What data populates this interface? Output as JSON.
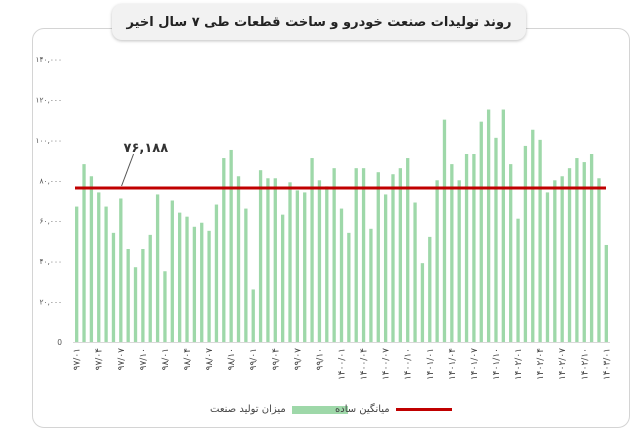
{
  "chart_data": {
    "type": "bar",
    "title": "روند تولیدات صنعت خودرو و ساخت قطعات طی ۷ سال اخیر",
    "ylim": [
      0,
      140000
    ],
    "y_ticks": [
      "0",
      "۲۰,۰۰۰",
      "۴۰,۰۰۰",
      "۶۰,۰۰۰",
      "۸۰,۰۰۰",
      "۱۰۰,۰۰۰",
      "۱۲۰,۰۰۰",
      "۱۴۰,۰۰۰"
    ],
    "x_tick_labels": [
      "۹۷/۰۱",
      "۹۷/۰۴",
      "۹۷/۰۷",
      "۹۷/۱۰",
      "۹۸/۰۱",
      "۹۸/۰۴",
      "۹۸/۰۷",
      "۹۸/۱۰",
      "۹۹/۰۱",
      "۹۹/۰۴",
      "۹۹/۰۷",
      "۹۹/۱۰",
      "۱۴۰۰/۰۱",
      "۱۴۰۰/۰۴",
      "۱۴۰۰/۰۷",
      "۱۴۰۰/۱۰",
      "۱۴۰۱/۰۱",
      "۱۴۰۱/۰۴",
      "۱۴۰۱/۰۷",
      "۱۴۰۱/۱۰",
      "۱۴۰۲/۰۱",
      "۱۴۰۲/۰۴",
      "۱۴۰۲/۰۷",
      "۱۴۰۲/۱۰",
      "۱۴۰۳/۰۱"
    ],
    "series": [
      {
        "name": "میزان تولید صنعت",
        "color": "#9ed8a9",
        "values": [
          67000,
          88000,
          82000,
          74000,
          67000,
          54000,
          71000,
          46000,
          37000,
          46000,
          53000,
          73000,
          35000,
          70000,
          64000,
          62000,
          57000,
          59000,
          55000,
          68000,
          91000,
          95000,
          82000,
          66000,
          26000,
          85000,
          81000,
          81000,
          63000,
          79000,
          75000,
          74000,
          91000,
          80000,
          77000,
          86000,
          66000,
          54000,
          86000,
          86000,
          56000,
          84000,
          73000,
          83000,
          86000,
          91000,
          69000,
          39000,
          52000,
          80000,
          110000,
          88000,
          80000,
          93000,
          93000,
          109000,
          115000,
          101000,
          115000,
          88000,
          61000,
          97000,
          105000,
          100000,
          74000,
          80000,
          82000,
          86000,
          91000,
          89000,
          93000,
          81000,
          48000
        ]
      }
    ],
    "reference_line": {
      "name": "میانگین ساده",
      "value": 76188,
      "label": "۷۶,۱۸۸",
      "color": "#c00000"
    },
    "legend_position": "bottom",
    "grid": false
  }
}
